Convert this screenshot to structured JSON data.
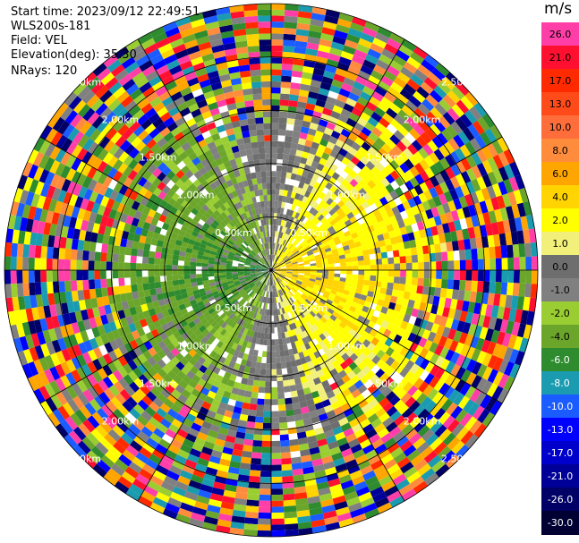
{
  "header": {
    "start_time": "Start time: 2023/09/12 22:49:51",
    "instrument": "WLS200s-181",
    "field": "Field: VEL",
    "elevation": "Elevation(deg): 35.30",
    "nrays": "NRays: 120"
  },
  "colorbar": {
    "unit": "m/s",
    "labels": [
      "26.0",
      "21.0",
      "17.0",
      "13.0",
      "10.0",
      "8.0",
      "6.0",
      "4.0",
      "2.0",
      "1.0",
      "0.0",
      "-1.0",
      "-2.0",
      "-4.0",
      "-6.0",
      "-8.0",
      "-10.0",
      "-13.0",
      "-17.0",
      "-21.0",
      "-26.0",
      "-30.0"
    ],
    "colors": [
      "#ff3fa7",
      "#ff1030",
      "#ff2a00",
      "#ff4a1a",
      "#ff6e3a",
      "#ff8c3c",
      "#ffa500",
      "#ffd400",
      "#ffff00",
      "#f2f07a",
      "#6e6e6e",
      "#808080",
      "#9acd32",
      "#6ba52a",
      "#2e8b2e",
      "#1a9bb0",
      "#1a5cff",
      "#0000ff",
      "#0000cc",
      "#000099",
      "#000066",
      "#000033"
    ]
  },
  "chart_data": {
    "type": "heatmap",
    "title": "",
    "projection": "polar-ppi",
    "field": "VEL",
    "units": "m/s",
    "elevation_deg": 35.3,
    "nrays": 120,
    "range_rings_km": [
      0.5,
      1.0,
      1.5,
      2.0,
      2.5
    ],
    "range_ring_labels": [
      "0.50km",
      "1.00km",
      "1.50km",
      "2.00km",
      "2.50km"
    ],
    "max_range_km": 2.5,
    "azimuth_spokes_deg": [
      0,
      30,
      60,
      90,
      120,
      150,
      180,
      210,
      240,
      270,
      300,
      330
    ],
    "vmin": -30.0,
    "vmax": 26.0,
    "pattern_summary": {
      "near_field_east_values": [
        2.0,
        4.0,
        6.0
      ],
      "near_field_west_values": [
        -2.0,
        -4.0,
        -6.0
      ],
      "far_field": "noise"
    }
  }
}
